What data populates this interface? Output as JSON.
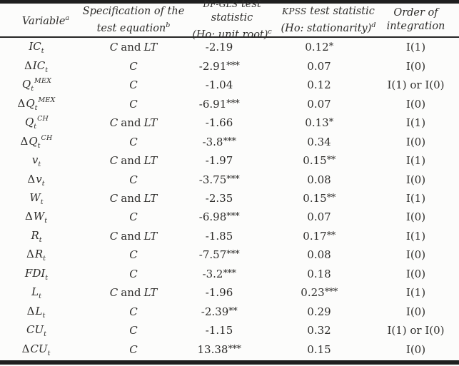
{
  "table": {
    "header": {
      "variable": {
        "text": "Variable",
        "sup": "a"
      },
      "spec": {
        "line1": "Specification of the",
        "line2": "test equation",
        "sup": "b"
      },
      "dfgls": {
        "acronym": "DF-GLS",
        "line1_rest": " test statistic",
        "line2": "(Ho: unit root)",
        "sup": "c"
      },
      "kpss": {
        "acronym": "KPSS",
        "line1_rest": " test statistic",
        "line2": "(Ho: stationarity)",
        "sup": "d"
      },
      "order": {
        "line1": "Order of",
        "line2": "integration"
      }
    },
    "rows": [
      {
        "variable_prefix": "",
        "variable_base": "IC",
        "variable_sub": "t",
        "variable_sup": "",
        "spec_const": "C",
        "spec_conj": "and",
        "spec_trend": "LT",
        "dfgls_value": "-2.19",
        "dfgls_stars": "",
        "kpss_value": "0.12",
        "kpss_stars": "*",
        "order": "I(1)"
      },
      {
        "variable_prefix": "Δ",
        "variable_base": "IC",
        "variable_sub": "t",
        "variable_sup": "",
        "spec_const": "C",
        "spec_conj": "",
        "spec_trend": "",
        "dfgls_value": "-2.91",
        "dfgls_stars": "***",
        "kpss_value": "0.07",
        "kpss_stars": "",
        "order": "I(0)"
      },
      {
        "variable_prefix": "",
        "variable_base": "Q",
        "variable_sub": "t",
        "variable_sup": "MEX",
        "spec_const": "C",
        "spec_conj": "",
        "spec_trend": "",
        "dfgls_value": "-1.04",
        "dfgls_stars": "",
        "kpss_value": "0.12",
        "kpss_stars": "",
        "order": "I(1) or I(0)"
      },
      {
        "variable_prefix": "Δ",
        "variable_base": "Q",
        "variable_sub": "t",
        "variable_sup": "MEX",
        "spec_const": "C",
        "spec_conj": "",
        "spec_trend": "",
        "dfgls_value": "-6.91",
        "dfgls_stars": "***",
        "kpss_value": "0.07",
        "kpss_stars": "",
        "order": "I(0)"
      },
      {
        "variable_prefix": "",
        "variable_base": "Q",
        "variable_sub": "t",
        "variable_sup": "CH",
        "spec_const": "C",
        "spec_conj": "and",
        "spec_trend": "LT",
        "dfgls_value": "-1.66",
        "dfgls_stars": "",
        "kpss_value": "0.13",
        "kpss_stars": "*",
        "order": "I(1)"
      },
      {
        "variable_prefix": "Δ",
        "variable_base": "Q",
        "variable_sub": "t",
        "variable_sup": "CH",
        "spec_const": "C",
        "spec_conj": "",
        "spec_trend": "",
        "dfgls_value": "-3.8",
        "dfgls_stars": "***",
        "kpss_value": "0.34",
        "kpss_stars": "",
        "order": "I(0)"
      },
      {
        "variable_prefix": "",
        "variable_base": "v",
        "variable_sub": "t",
        "variable_sup": "",
        "spec_const": "C",
        "spec_conj": "and",
        "spec_trend": "LT",
        "dfgls_value": "-1.97",
        "dfgls_stars": "",
        "kpss_value": "0.15",
        "kpss_stars": "**",
        "order": "I(1)"
      },
      {
        "variable_prefix": "Δ",
        "variable_base": "v",
        "variable_sub": "t",
        "variable_sup": "",
        "spec_const": "C",
        "spec_conj": "",
        "spec_trend": "",
        "dfgls_value": "-3.75",
        "dfgls_stars": "***",
        "kpss_value": "0.08",
        "kpss_stars": "",
        "order": "I(0)"
      },
      {
        "variable_prefix": "",
        "variable_base": "W",
        "variable_sub": "t",
        "variable_sup": "",
        "spec_const": "C",
        "spec_conj": "and",
        "spec_trend": "LT",
        "dfgls_value": "-2.35",
        "dfgls_stars": "",
        "kpss_value": "0.15",
        "kpss_stars": "**",
        "order": "I(1)"
      },
      {
        "variable_prefix": "Δ",
        "variable_base": "W",
        "variable_sub": "t",
        "variable_sup": "",
        "spec_const": "C",
        "spec_conj": "",
        "spec_trend": "",
        "dfgls_value": "-6.98",
        "dfgls_stars": "***",
        "kpss_value": "0.07",
        "kpss_stars": "",
        "order": "I(0)"
      },
      {
        "variable_prefix": "",
        "variable_base": "R",
        "variable_sub": "t",
        "variable_sup": "",
        "spec_const": "C",
        "spec_conj": "and",
        "spec_trend": "LT",
        "dfgls_value": "-1.85",
        "dfgls_stars": "",
        "kpss_value": "0.17",
        "kpss_stars": "**",
        "order": "I(1)"
      },
      {
        "variable_prefix": "Δ",
        "variable_base": "R",
        "variable_sub": "t",
        "variable_sup": "",
        "spec_const": "C",
        "spec_conj": "",
        "spec_trend": "",
        "dfgls_value": "-7.57",
        "dfgls_stars": "***",
        "kpss_value": "0.08",
        "kpss_stars": "",
        "order": "I(0)"
      },
      {
        "variable_prefix": "",
        "variable_base": "FDI",
        "variable_sub": "t",
        "variable_sup": "",
        "spec_const": "C",
        "spec_conj": "",
        "spec_trend": "",
        "dfgls_value": "-3.2",
        "dfgls_stars": "***",
        "kpss_value": "0.18",
        "kpss_stars": "",
        "order": "I(0)"
      },
      {
        "variable_prefix": "",
        "variable_base": "L",
        "variable_sub": "t",
        "variable_sup": "",
        "spec_const": "C",
        "spec_conj": "and",
        "spec_trend": "LT",
        "dfgls_value": "-1.96",
        "dfgls_stars": "",
        "kpss_value": "0.23",
        "kpss_stars": "***",
        "order": "I(1)"
      },
      {
        "variable_prefix": "Δ",
        "variable_base": "L",
        "variable_sub": "t",
        "variable_sup": "",
        "spec_const": "C",
        "spec_conj": "",
        "spec_trend": "",
        "dfgls_value": "-2.39",
        "dfgls_stars": "**",
        "kpss_value": "0.29",
        "kpss_stars": "",
        "order": "I(0)"
      },
      {
        "variable_prefix": "",
        "variable_base": "CU",
        "variable_sub": "t",
        "variable_sup": "",
        "spec_const": "C",
        "spec_conj": "",
        "spec_trend": "",
        "dfgls_value": "-1.15",
        "dfgls_stars": "",
        "kpss_value": "0.32",
        "kpss_stars": "",
        "order": "I(1) or I(0)"
      },
      {
        "variable_prefix": "Δ",
        "variable_base": "CU",
        "variable_sub": "t",
        "variable_sup": "",
        "spec_const": "C",
        "spec_conj": "",
        "spec_trend": "",
        "dfgls_value": "13.38",
        "dfgls_stars": "***",
        "kpss_value": "0.15",
        "kpss_stars": "",
        "order": "I(0)"
      }
    ],
    "colors": {
      "text": "#2e2d2b",
      "rule": "#1f1f1f",
      "background": "#fcfcfb"
    }
  }
}
